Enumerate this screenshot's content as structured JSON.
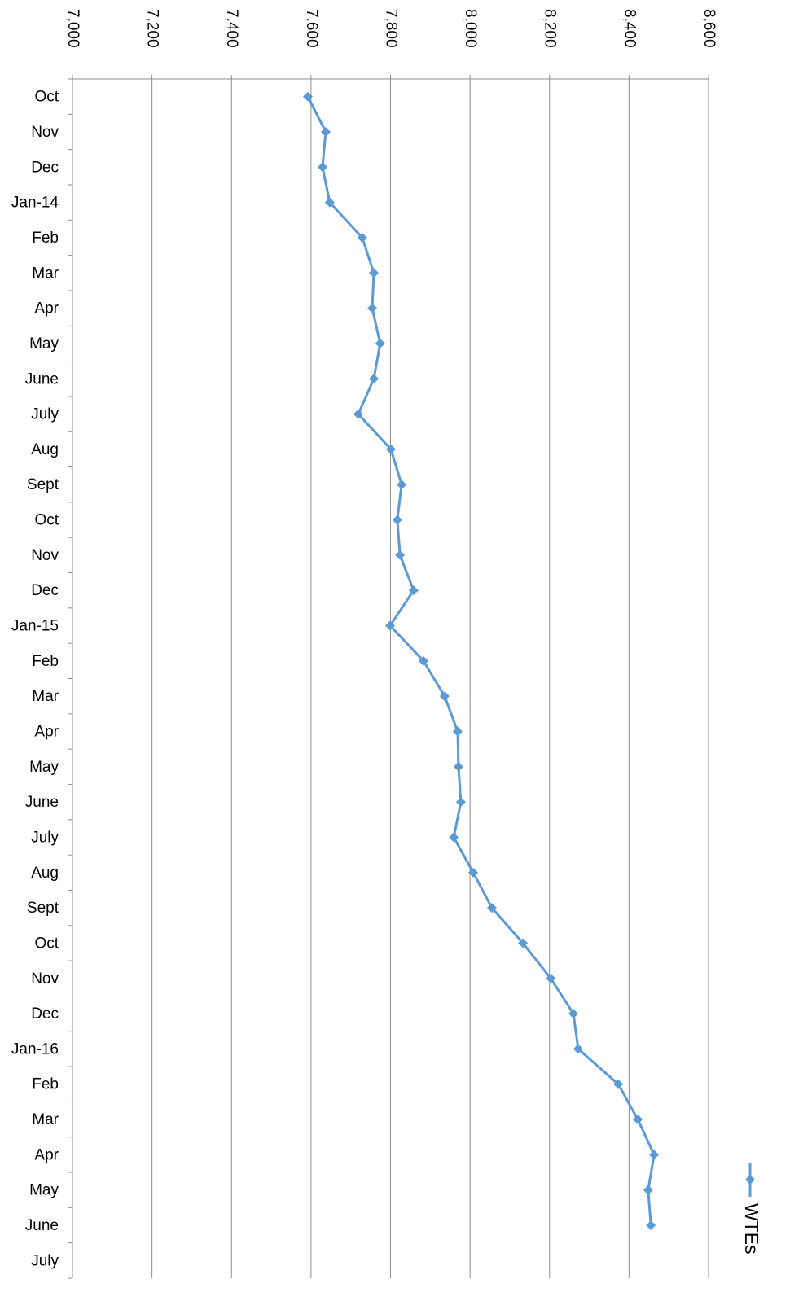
{
  "chart_data": {
    "type": "line",
    "orientation": "horizontal",
    "categories": [
      "Oct",
      "Nov",
      "Dec",
      "Jan-14",
      "Feb",
      "Mar",
      "Apr",
      "May",
      "June",
      "July",
      "Aug",
      "Sept",
      "Oct",
      "Nov",
      "Dec",
      "Jan-15",
      "Feb",
      "Mar",
      "Apr",
      "May",
      "June",
      "July",
      "Aug",
      "Sept",
      "Oct",
      "Nov",
      "Dec",
      "Jan-16",
      "Feb",
      "Mar",
      "Apr",
      "May",
      "June",
      "July"
    ],
    "series": [
      {
        "name": "WTEs",
        "color": "#5b9bd5",
        "values": [
          7592,
          7637,
          7629,
          7647,
          7729,
          7758,
          7754,
          7774,
          7758,
          7719,
          7801,
          7828,
          7817,
          7824,
          7858,
          7799,
          7883,
          7936,
          7969,
          7971,
          7977,
          7959,
          8008,
          8055,
          8133,
          8203,
          8260,
          8272,
          8373,
          8422,
          8463,
          8448,
          8455,
          null
        ]
      }
    ],
    "ylim": [
      7000,
      8600
    ],
    "yticks": [
      {
        "value": 7000,
        "label": "7,000"
      },
      {
        "value": 7200,
        "label": "7,200"
      },
      {
        "value": 7400,
        "label": "7,400"
      },
      {
        "value": 7600,
        "label": "7,600"
      },
      {
        "value": 7800,
        "label": "7,800"
      },
      {
        "value": 8000,
        "label": "8,000"
      },
      {
        "value": 8200,
        "label": "8,200"
      },
      {
        "value": 8400,
        "label": "8,400"
      },
      {
        "value": 8600,
        "label": "8,600"
      }
    ],
    "grid": true,
    "legend": "right"
  }
}
